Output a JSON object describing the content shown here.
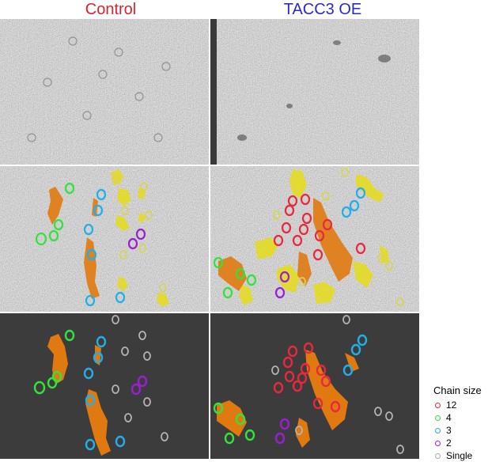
{
  "titles": {
    "left": "Control",
    "right": "TACC3 OE"
  },
  "colors": {
    "title_left": "#e0202a",
    "title_right": "#2a2acc",
    "background_dark": "#3c3c3c",
    "ring_12": "#e8283c",
    "ring_4": "#33e23a",
    "ring_3": "#22aee6",
    "ring_2": "#9a1fd0",
    "ring_single": "#aaaaaa",
    "microtubule_orange": "#e07a10",
    "microtubule_yellow": "#e6dc1a"
  },
  "legend": {
    "title": "Chain size",
    "items": [
      {
        "label": "12",
        "color": "#e8283c"
      },
      {
        "label": "4",
        "color": "#33e23a"
      },
      {
        "label": "3",
        "color": "#22aee6"
      },
      {
        "label": "2",
        "color": "#9a1fd0"
      },
      {
        "label": "Single",
        "color": "#aaaaaa"
      }
    ]
  }
}
